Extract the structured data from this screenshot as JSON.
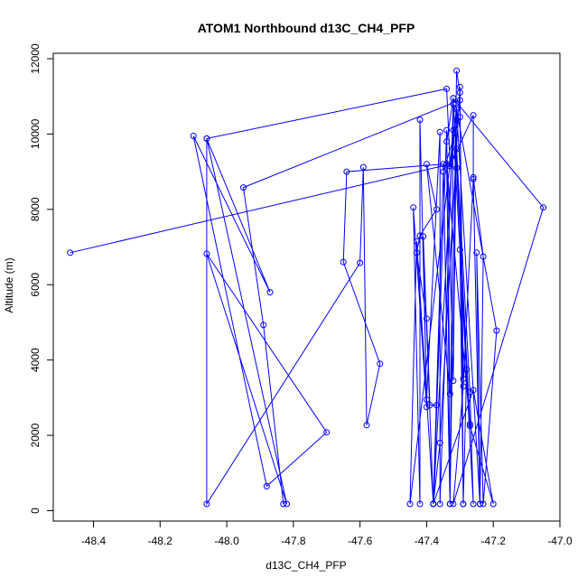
{
  "chart_data": {
    "type": "line",
    "title": "ATOM1 Northbound d13C_CH4_PFP",
    "xlabel": "d13C_CH4_PFP",
    "ylabel": "Altitude (m)",
    "xlim": [
      -48.5,
      -47.0
    ],
    "ylim": [
      0,
      12000
    ],
    "x_ticks": [
      -48.4,
      -48.2,
      -48.0,
      -47.8,
      -47.6,
      -47.4,
      -47.2,
      -47.0
    ],
    "x_tick_labels": [
      "-48.4",
      "-48.2",
      "-48.0",
      "-47.8",
      "-47.6",
      "-47.4",
      "-47.2",
      "-47.0"
    ],
    "y_ticks": [
      0,
      2000,
      4000,
      6000,
      8000,
      10000,
      12000
    ],
    "y_tick_labels": [
      "0",
      "2000",
      "4000",
      "6000",
      "8000",
      "10000",
      "12000"
    ],
    "grid": false,
    "series": [
      {
        "color": "#0000ff",
        "marker": "open-circle",
        "points": [
          [
            -48.47,
            6850
          ],
          [
            -47.33,
            9200
          ],
          [
            -47.34,
            11200
          ],
          [
            -48.06,
            9880
          ],
          [
            -47.82,
            180
          ],
          [
            -48.06,
            6820
          ],
          [
            -47.7,
            2080
          ],
          [
            -47.88,
            650
          ],
          [
            -48.1,
            9950
          ],
          [
            -47.87,
            5800
          ],
          [
            -48.06,
            9880
          ],
          [
            -48.06,
            180
          ],
          [
            -47.6,
            6580
          ],
          [
            -47.59,
            9120
          ],
          [
            -47.58,
            2270
          ],
          [
            -47.54,
            3900
          ],
          [
            -47.65,
            6600
          ],
          [
            -47.64,
            9000
          ],
          [
            -47.35,
            9200
          ],
          [
            -47.33,
            180
          ],
          [
            -47.31,
            11680
          ],
          [
            -47.3,
            11100
          ],
          [
            -47.29,
            180
          ],
          [
            -47.28,
            3750
          ],
          [
            -47.32,
            10100
          ],
          [
            -47.38,
            180
          ],
          [
            -47.34,
            10100
          ],
          [
            -47.33,
            180
          ],
          [
            -47.32,
            10800
          ],
          [
            -47.36,
            180
          ],
          [
            -47.36,
            10050
          ],
          [
            -47.4,
            2950
          ],
          [
            -47.42,
            10380
          ],
          [
            -47.42,
            180
          ],
          [
            -47.44,
            8050
          ],
          [
            -47.4,
            2750
          ],
          [
            -47.41,
            7280
          ],
          [
            -47.38,
            180
          ],
          [
            -47.36,
            1800
          ],
          [
            -47.3,
            11250
          ],
          [
            -47.29,
            180
          ],
          [
            -47.3,
            6930
          ],
          [
            -47.26,
            180
          ],
          [
            -47.27,
            3150
          ],
          [
            -47.31,
            9600
          ],
          [
            -47.33,
            9150
          ],
          [
            -47.26,
            10500
          ],
          [
            -47.26,
            8850
          ],
          [
            -47.23,
            6750
          ],
          [
            -47.24,
            180
          ],
          [
            -47.31,
            10650
          ],
          [
            -47.19,
            4780
          ],
          [
            -47.23,
            180
          ],
          [
            -47.25,
            6850
          ],
          [
            -47.24,
            180
          ],
          [
            -47.26,
            8800
          ],
          [
            -47.29,
            3300
          ],
          [
            -47.32,
            180
          ],
          [
            -47.05,
            8050
          ],
          [
            -47.32,
            10950
          ],
          [
            -47.27,
            2250
          ],
          [
            -47.2,
            180
          ],
          [
            -47.26,
            3200
          ],
          [
            -47.38,
            180
          ],
          [
            -47.37,
            2800
          ],
          [
            -47.39,
            2800
          ],
          [
            -47.4,
            5100
          ],
          [
            -47.43,
            6850
          ],
          [
            -47.42,
            7300
          ],
          [
            -47.37,
            8000
          ],
          [
            -47.4,
            9200
          ],
          [
            -47.33,
            3100
          ],
          [
            -47.34,
            9200
          ],
          [
            -47.27,
            2300
          ],
          [
            -47.31,
            9100
          ],
          [
            -47.32,
            10950
          ],
          [
            -47.34,
            9800
          ],
          [
            -47.32,
            3450
          ],
          [
            -47.31,
            10700
          ],
          [
            -47.45,
            180
          ],
          [
            -47.43,
            7150
          ],
          [
            -47.38,
            180
          ],
          [
            -47.35,
            9000
          ],
          [
            -47.3,
            10450
          ],
          [
            -47.29,
            3500
          ],
          [
            -47.3,
            10900
          ],
          [
            -47.95,
            8580
          ],
          [
            -47.89,
            4930
          ],
          [
            -47.83,
            180
          ]
        ]
      }
    ]
  }
}
